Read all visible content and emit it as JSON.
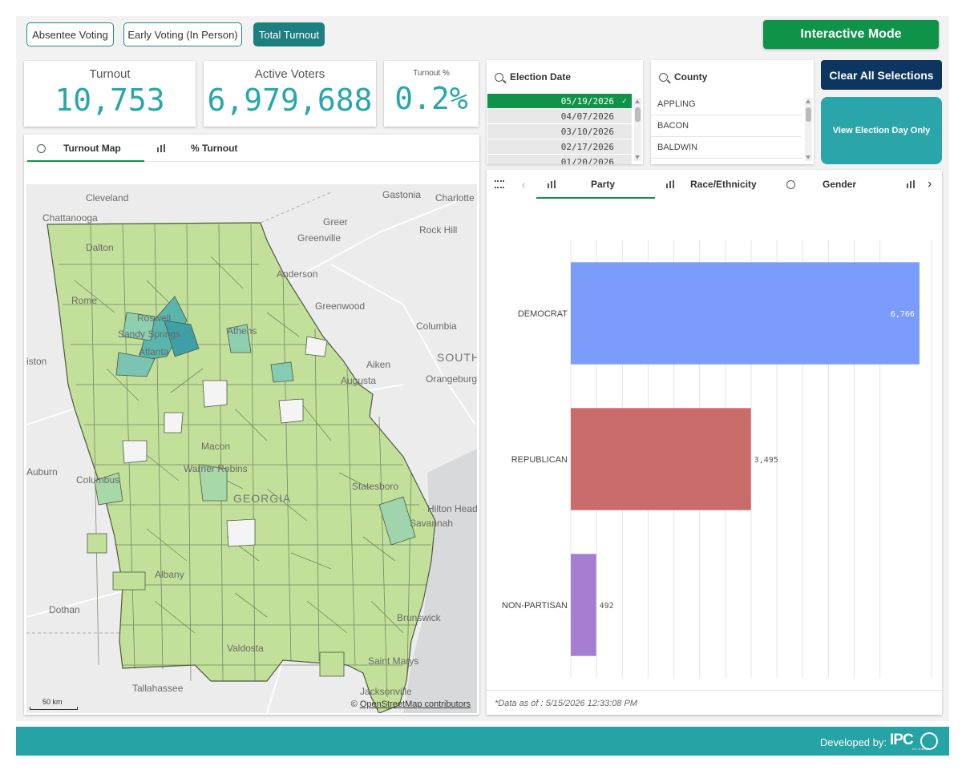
{
  "voting_modes": [
    {
      "label": "Absentee Voting",
      "active": false
    },
    {
      "label": "Early Voting (In Person)",
      "active": false
    },
    {
      "label": "Total Turnout",
      "active": true
    }
  ],
  "interactive_mode_label": "Interactive Mode",
  "kpis": {
    "turnout": {
      "label": "Turnout",
      "value": "10,753"
    },
    "active_voters": {
      "label": "Active Voters",
      "value": "6,979,688"
    },
    "turnout_pct": {
      "label": "Turnout %",
      "value": "0.2%"
    }
  },
  "election_date_filter": {
    "label": "Election Date",
    "items": [
      "05/19/2026",
      "04/07/2026",
      "03/10/2026",
      "02/17/2026",
      "01/20/2026"
    ],
    "selected": "05/19/2026"
  },
  "county_filter": {
    "label": "County",
    "items": [
      "APPLING",
      "BACON",
      "BALDWIN"
    ]
  },
  "clear_all_label": "Clear All Selections",
  "election_day_only_label": "View Election Day Only",
  "map_panel": {
    "tabs": [
      {
        "label": "Turnout Map",
        "active": true
      },
      {
        "label": "% Turnout",
        "active": false
      }
    ],
    "cities": {
      "cleveland": "Cleveland",
      "chattanooga": "Chattanooga",
      "dalton": "Dalton",
      "rome": "Rome",
      "roswell": "Roswell",
      "sandy_springs": "Sandy Springs",
      "atlanta": "Atlanta",
      "athens": "Athens",
      "gastonia": "Gastonia",
      "charlotte": "Charlotte",
      "greer": "Greer",
      "greenville": "Greenville",
      "rock_hill": "Rock Hill",
      "anderson": "Anderson",
      "greenwood": "Greenwood",
      "columbia": "Columbia",
      "south": "SOUTH",
      "aiken": "Aiken",
      "augusta": "Augusta",
      "orangeburg": "Orangeburg",
      "macon": "Macon",
      "warner_robins": "Warner Robins",
      "auburn": "Auburn",
      "columbus": "Columbus",
      "georgia": "GEORGIA",
      "statesboro": "Statesboro",
      "hilton_head": "Hilton Head",
      "savannah": "Savannah",
      "albany": "Albany",
      "dothan": "Dothan",
      "brunswick": "Brunswick",
      "valdosta": "Valdosta",
      "saint_marys": "Saint Marys",
      "tallahassee": "Tallahassee",
      "jacksonville": "Jacksonville",
      "ston": "iston"
    },
    "scale_label": "50 km",
    "attribution": "OpenStreetMap contributors"
  },
  "chart_panel": {
    "tabs": [
      {
        "label": "Party",
        "active": true
      },
      {
        "label": "Race/Ethnicity",
        "active": false
      },
      {
        "label": "Gender",
        "active": false
      }
    ],
    "footnote": "*Data as of : 5/15/2026 12:33:08 PM"
  },
  "chart_data": {
    "type": "bar",
    "orientation": "horizontal",
    "categories": [
      "DEMOCRAT",
      "REPUBLICAN",
      "NON-PARTISAN"
    ],
    "values": [
      6766,
      3495,
      492
    ],
    "value_labels": [
      "6,766",
      "3,495",
      "492"
    ],
    "colors": [
      "#7b9cfa",
      "#c96b6b",
      "#a57dd1"
    ],
    "xlim": [
      0,
      7000
    ],
    "x_ticks": [
      "0",
      "500",
      "1.0...",
      "1.5...",
      "2.0...",
      "2.5...",
      "3.0...",
      "3.5...",
      "4.0...",
      "4.5...",
      "5.0...",
      "5.5...",
      "6.0...",
      "7,000"
    ],
    "grid": true
  },
  "footer": {
    "developed_by": "Developed by:",
    "logo_text": "IPC",
    "logo_sub": "GLOBAL"
  },
  "colors": {
    "accent_teal": "#2aa6aa",
    "green": "#0f9348",
    "navy": "#0c3560"
  }
}
